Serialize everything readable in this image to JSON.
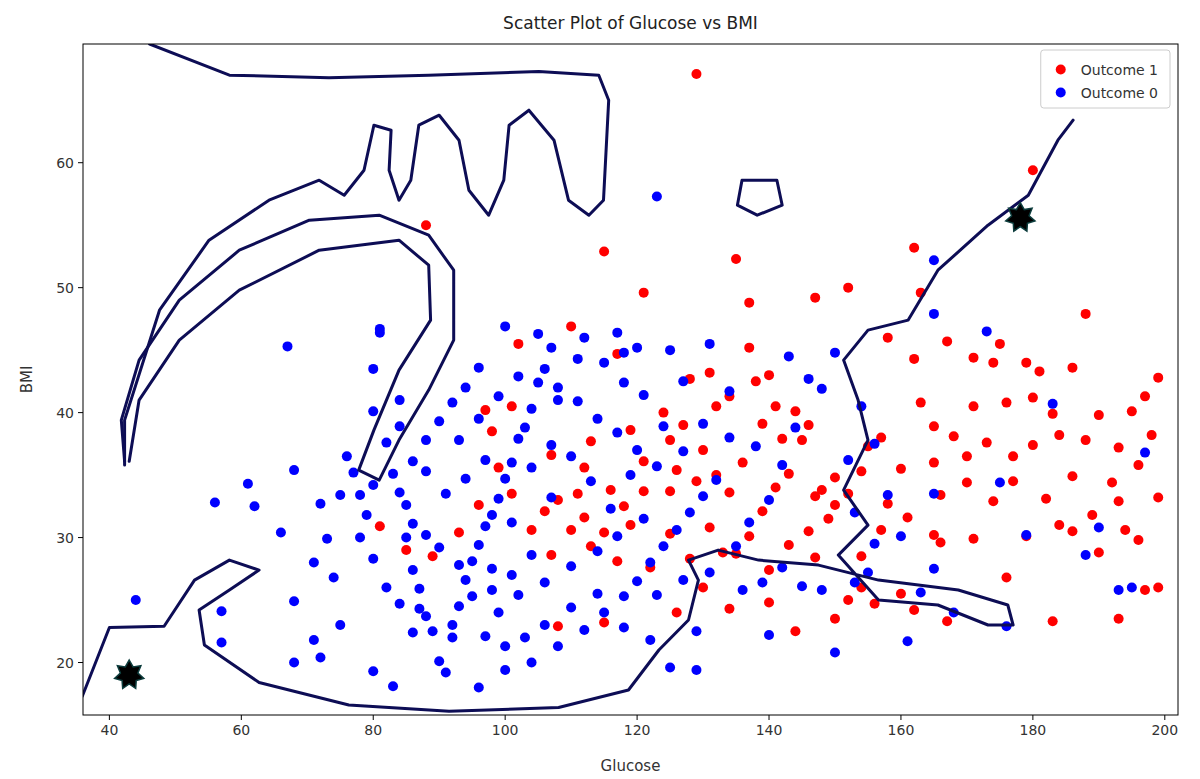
{
  "chart_data": {
    "type": "scatter",
    "title": "Scatter Plot of Glucose vs BMI",
    "x_label": "Glucose",
    "y_label": "BMI",
    "xlim": [
      36,
      202
    ],
    "ylim": [
      15.8,
      69.5
    ],
    "xticks": [
      40,
      60,
      80,
      100,
      120,
      140,
      160,
      180,
      200
    ],
    "yticks": [
      20,
      30,
      40,
      50,
      60
    ],
    "legend": "upper right",
    "grid": false,
    "series": [
      {
        "name": "Outcome 1",
        "color": "#ff0000",
        "marker": "circle",
        "x": [
          129,
          88,
          180,
          115,
          135,
          162,
          163,
          152,
          147,
          137,
          188,
          167,
          175,
          171,
          179,
          181,
          186,
          199,
          197,
          180,
          163,
          171,
          176,
          190,
          184,
          168,
          157,
          173,
          180,
          188,
          177,
          165,
          160,
          154,
          150,
          148,
          170,
          186,
          192,
          196,
          199,
          193,
          182,
          174,
          166,
          158,
          161,
          157,
          165,
          171,
          179,
          186,
          189,
          194,
          196,
          166,
          154,
          147,
          140,
          135,
          154,
          152,
          156,
          160,
          162,
          167,
          183,
          193,
          197,
          199,
          176,
          128,
          131,
          134,
          138,
          141,
          144,
          146,
          139,
          132,
          127,
          125,
          130,
          136,
          142,
          145,
          143,
          141,
          134,
          129,
          125,
          121,
          118,
          116,
          111,
          108,
          106,
          112,
          119,
          125,
          131,
          137,
          143,
          146,
          149,
          150,
          147,
          139,
          133,
          128,
          122,
          117,
          113,
          107,
          104,
          101,
          99,
          98,
          97,
          101,
          102,
          110,
          117,
          121,
          124,
          119,
          113,
          107,
          112,
          81,
          85,
          89,
          93,
          96,
          115,
          108,
          130,
          134,
          140,
          144,
          150,
          126,
          162,
          174,
          158,
          190,
          184,
          177,
          183,
          193,
          198,
          195,
          170,
          165,
          152,
          155,
          140,
          137,
          121,
          126,
          132,
          115,
          110
        ],
        "y": [
          67.1,
          55,
          59.4,
          52.9,
          52.3,
          53.2,
          49.6,
          50,
          49.2,
          48.8,
          47.9,
          45.7,
          45.5,
          44.4,
          44.0,
          43.3,
          43.6,
          42.8,
          41.3,
          41.2,
          40.8,
          40.5,
          40.8,
          39.8,
          38.2,
          38.1,
          38.0,
          37.6,
          37.4,
          37.8,
          36.5,
          36.0,
          35.5,
          35.3,
          34.8,
          33.8,
          34.4,
          34.9,
          34.4,
          35.8,
          33.2,
          32.9,
          33.1,
          32.9,
          33.4,
          32.7,
          31.6,
          30.6,
          30.2,
          29.9,
          30.1,
          30.5,
          31.8,
          30.6,
          29.8,
          29.6,
          28.5,
          28.4,
          27.4,
          28.7,
          26.0,
          25.0,
          24.7,
          25.5,
          24.2,
          23.3,
          23.3,
          23.5,
          25.8,
          26.0,
          26.8,
          42.7,
          43.2,
          41.3,
          42.5,
          40.5,
          40.1,
          39.0,
          39.1,
          40.5,
          39.0,
          37.8,
          37.0,
          36.0,
          37.9,
          37.8,
          35.1,
          34.0,
          33.6,
          34.5,
          33.7,
          33.7,
          32.5,
          33.8,
          33.5,
          33.0,
          32.1,
          31.6,
          31.0,
          30.3,
          30.8,
          30.1,
          29.4,
          30.5,
          31.5,
          32.6,
          33.3,
          32.1,
          28.8,
          28.3,
          27.6,
          28.1,
          29.3,
          28.6,
          30.6,
          33.5,
          35.6,
          38.5,
          40.2,
          40.5,
          45.5,
          46.9,
          44.7,
          49.6,
          40.0,
          38.6,
          37.7,
          36.6,
          35.6,
          30.9,
          29.0,
          28.5,
          30.4,
          32.6,
          23.2,
          22.9,
          26.0,
          24.3,
          24.8,
          22.5,
          23.5,
          24.0,
          44.3,
          44.0,
          46.0,
          28.8,
          31.0,
          34.5,
          39.9,
          37.2,
          38.2,
          40.1,
          36.5,
          38.9,
          33.5,
          37.3,
          43.0,
          45.2,
          36.1,
          35.4,
          35.0,
          30.4,
          30.6
        ]
      },
      {
        "name": "Outcome 0",
        "color": "#0000ff",
        "marker": "circle",
        "x": [
          44,
          57,
          57,
          68,
          68,
          56,
          61,
          62,
          66,
          67,
          68,
          72,
          73,
          71,
          71,
          72,
          74,
          75,
          75,
          76,
          77,
          78,
          79,
          80,
          80,
          81,
          81,
          82,
          83,
          84,
          85,
          86,
          86,
          87,
          87,
          88,
          89,
          90,
          91,
          92,
          93,
          94,
          95,
          96,
          97,
          98,
          99,
          100,
          101,
          102,
          103,
          104,
          105,
          106,
          107,
          100,
          96,
          94,
          92,
          90,
          88,
          86,
          84,
          84,
          80,
          78,
          80,
          82,
          84,
          86,
          83,
          80,
          96,
          100,
          104,
          108,
          112,
          115,
          118,
          120,
          122,
          124,
          126,
          128,
          130,
          132,
          123,
          120,
          117,
          114,
          111,
          108,
          118,
          120,
          115,
          111,
          107,
          104,
          101,
          98,
          95,
          92,
          99,
          102,
          106,
          110,
          114,
          117,
          121,
          110,
          106,
          103,
          100,
          97,
          93,
          90,
          88,
          91,
          94,
          97,
          96,
          99,
          93,
          88,
          85,
          114,
          118,
          122,
          125,
          129,
          129,
          136,
          139,
          142,
          145,
          137,
          140,
          142,
          144,
          146,
          143,
          138,
          134,
          130,
          127,
          124,
          121,
          118,
          135,
          131,
          127,
          123,
          140,
          150,
          148,
          153,
          155,
          153,
          156,
          160,
          158,
          161,
          163,
          165,
          168,
          165,
          176,
          175,
          179,
          183,
          188,
          190,
          193,
          195,
          197,
          173,
          165,
          165,
          123,
          154,
          150,
          148,
          152,
          156,
          134,
          131,
          127,
          117,
          112,
          105,
          108,
          102,
          119,
          116,
          113,
          110,
          107,
          104,
          101,
          98,
          125
        ],
        "y": [
          25,
          24.1,
          21.6,
          20.0,
          24.9,
          32.8,
          34.3,
          32.5,
          30.4,
          45.3,
          35.4,
          32.7,
          29.9,
          28.0,
          21.8,
          20.4,
          26.8,
          23.0,
          33.4,
          36.5,
          35.2,
          33.4,
          31.8,
          43.5,
          40.1,
          46.4,
          46.7,
          37.6,
          35.1,
          33.6,
          32.6,
          31.1,
          27.4,
          25.9,
          24.3,
          23.7,
          22.5,
          20.1,
          19.2,
          22.0,
          24.5,
          26.6,
          28.1,
          29.4,
          30.9,
          31.8,
          33.1,
          34.7,
          36.0,
          37.9,
          38.8,
          40.3,
          42.4,
          43.5,
          45.2,
          46.9,
          43.6,
          42.0,
          40.8,
          39.3,
          37.8,
          36.1,
          38.9,
          41.0,
          34.2,
          30.0,
          28.3,
          26.0,
          24.7,
          22.4,
          18.1,
          19.3,
          18.0,
          19.4,
          20.0,
          21.3,
          22.6,
          24.0,
          25.3,
          26.5,
          28.0,
          29.3,
          30.6,
          32.0,
          33.3,
          34.6,
          35.7,
          37.0,
          38.4,
          39.5,
          40.9,
          42.0,
          44.8,
          45.2,
          44.0,
          44.3,
          37.4,
          35.6,
          31.2,
          27.5,
          25.3,
          23.0,
          24.0,
          25.4,
          26.4,
          27.7,
          28.9,
          30.1,
          31.5,
          24.4,
          23.0,
          22.0,
          21.3,
          22.1,
          27.8,
          29.2,
          30.2,
          33.5,
          34.7,
          36.2,
          39.5,
          41.3,
          37.8,
          35.3,
          30.0,
          25.5,
          22.8,
          21.8,
          19.6,
          19.4,
          22.5,
          25.8,
          26.4,
          27.6,
          26.1,
          31.2,
          33.0,
          35.8,
          38.8,
          42.7,
          44.5,
          37.3,
          38.0,
          39.1,
          36.9,
          38.9,
          41.4,
          42.4,
          29.3,
          27.2,
          26.6,
          25.4,
          22.2,
          20.8,
          25.8,
          26.4,
          27.2,
          32.0,
          29.5,
          30.1,
          33.4,
          21.7,
          25.6,
          27.5,
          24.0,
          33.5,
          22.9,
          34.4,
          30.2,
          40.7,
          28.6,
          30.8,
          25.8,
          26.0,
          36.8,
          46.5,
          47.9,
          52.2,
          57.3,
          40.5,
          44.8,
          41.9,
          36.2,
          37.5,
          41.7,
          45.5,
          42.5,
          46.4,
          46.0,
          46.3,
          41.0,
          42.9,
          35.0,
          32.3,
          34.5,
          36.5,
          33.2,
          28.6,
          27.0,
          25.8,
          45.0
        ]
      }
    ],
    "annotation_curves": [
      {
        "x": [
          35.9,
          40,
          48.3,
          52.9,
          58.2,
          62.7,
          58.2,
          53.6,
          54.4,
          62.7,
          76.3,
          91.5,
          108.1,
          118.7,
          123.3,
          127.8,
          129.3,
          127.8,
          132.3,
          138.4,
          147.5,
          156.6,
          168.7,
          176.2,
          177.0,
          173.2,
          165.6,
          156.6,
          150.5,
          155.0,
          151.3,
          155.0,
          153.5,
          151.3,
          155.0,
          161.1,
          165.6,
          173.2,
          179.3,
          183.8,
          186.1
        ],
        "y": [
          17.3,
          22.8,
          22.9,
          26.6,
          28.2,
          27.4,
          25.8,
          24.2,
          21.4,
          18.4,
          16.6,
          16.1,
          16.4,
          17.8,
          21.0,
          23.4,
          26.6,
          28.2,
          29.0,
          28.2,
          27.8,
          26.6,
          25.8,
          24.6,
          23.0,
          23.0,
          24.6,
          25.0,
          28.6,
          31.0,
          33.8,
          37.8,
          41.0,
          44.2,
          46.6,
          47.4,
          51.4,
          55.0,
          57.4,
          61.8,
          63.4
        ]
      },
      {
        "x": [
          43.0,
          44.5,
          50.6,
          59.7,
          71.8,
          83.9,
          88.4,
          88.7,
          83.9,
          80.1,
          77.8,
          80.9,
          83.9,
          88.4,
          92.2,
          92.2,
          88.4,
          80.9,
          70.3,
          59.7,
          50.6,
          44.5,
          41.8,
          42.3
        ],
        "y": [
          36.1,
          41.0,
          45.8,
          49.8,
          53.0,
          53.8,
          51.8,
          47.4,
          43.4,
          38.6,
          35.4,
          34.6,
          37.8,
          41.8,
          45.8,
          51.4,
          54.2,
          55.8,
          55.4,
          53.0,
          49.0,
          44.2,
          39.4,
          36.1
        ]
      },
      {
        "x": [
          46.1,
          58.2,
          73.3,
          88.4,
          105.1,
          114.2,
          115.7,
          114.9,
          112.7,
          109.6,
          107.4,
          103.6,
          100.6,
          99.8,
          97.5,
          94.5,
          93.0,
          90.0,
          86.9,
          85.7,
          83.9,
          82.4,
          82.7,
          80.1,
          78.6,
          75.6,
          71.8,
          64.2,
          55.1,
          47.6,
          42.3,
          42.3
        ],
        "y": [
          69.5,
          67.0,
          66.8,
          67.0,
          67.3,
          67.0,
          65.0,
          57.0,
          55.8,
          57.0,
          61.8,
          64.2,
          63.0,
          58.6,
          55.8,
          57.8,
          61.8,
          63.8,
          63.0,
          58.6,
          57.0,
          59.4,
          62.6,
          63.0,
          59.4,
          57.4,
          58.6,
          57.0,
          53.8,
          48.2,
          39.4,
          35.8
        ]
      },
      {
        "x": [
          135.9,
          141.2,
          142.0,
          138.2,
          135.2,
          135.9
        ],
        "y": [
          58.6,
          58.6,
          56.6,
          55.8,
          56.6,
          58.6
        ]
      }
    ],
    "highlighted_points": {
      "marker": "star",
      "x": [
        43.0,
        178.1
      ],
      "y": [
        19.0,
        55.6
      ]
    }
  }
}
